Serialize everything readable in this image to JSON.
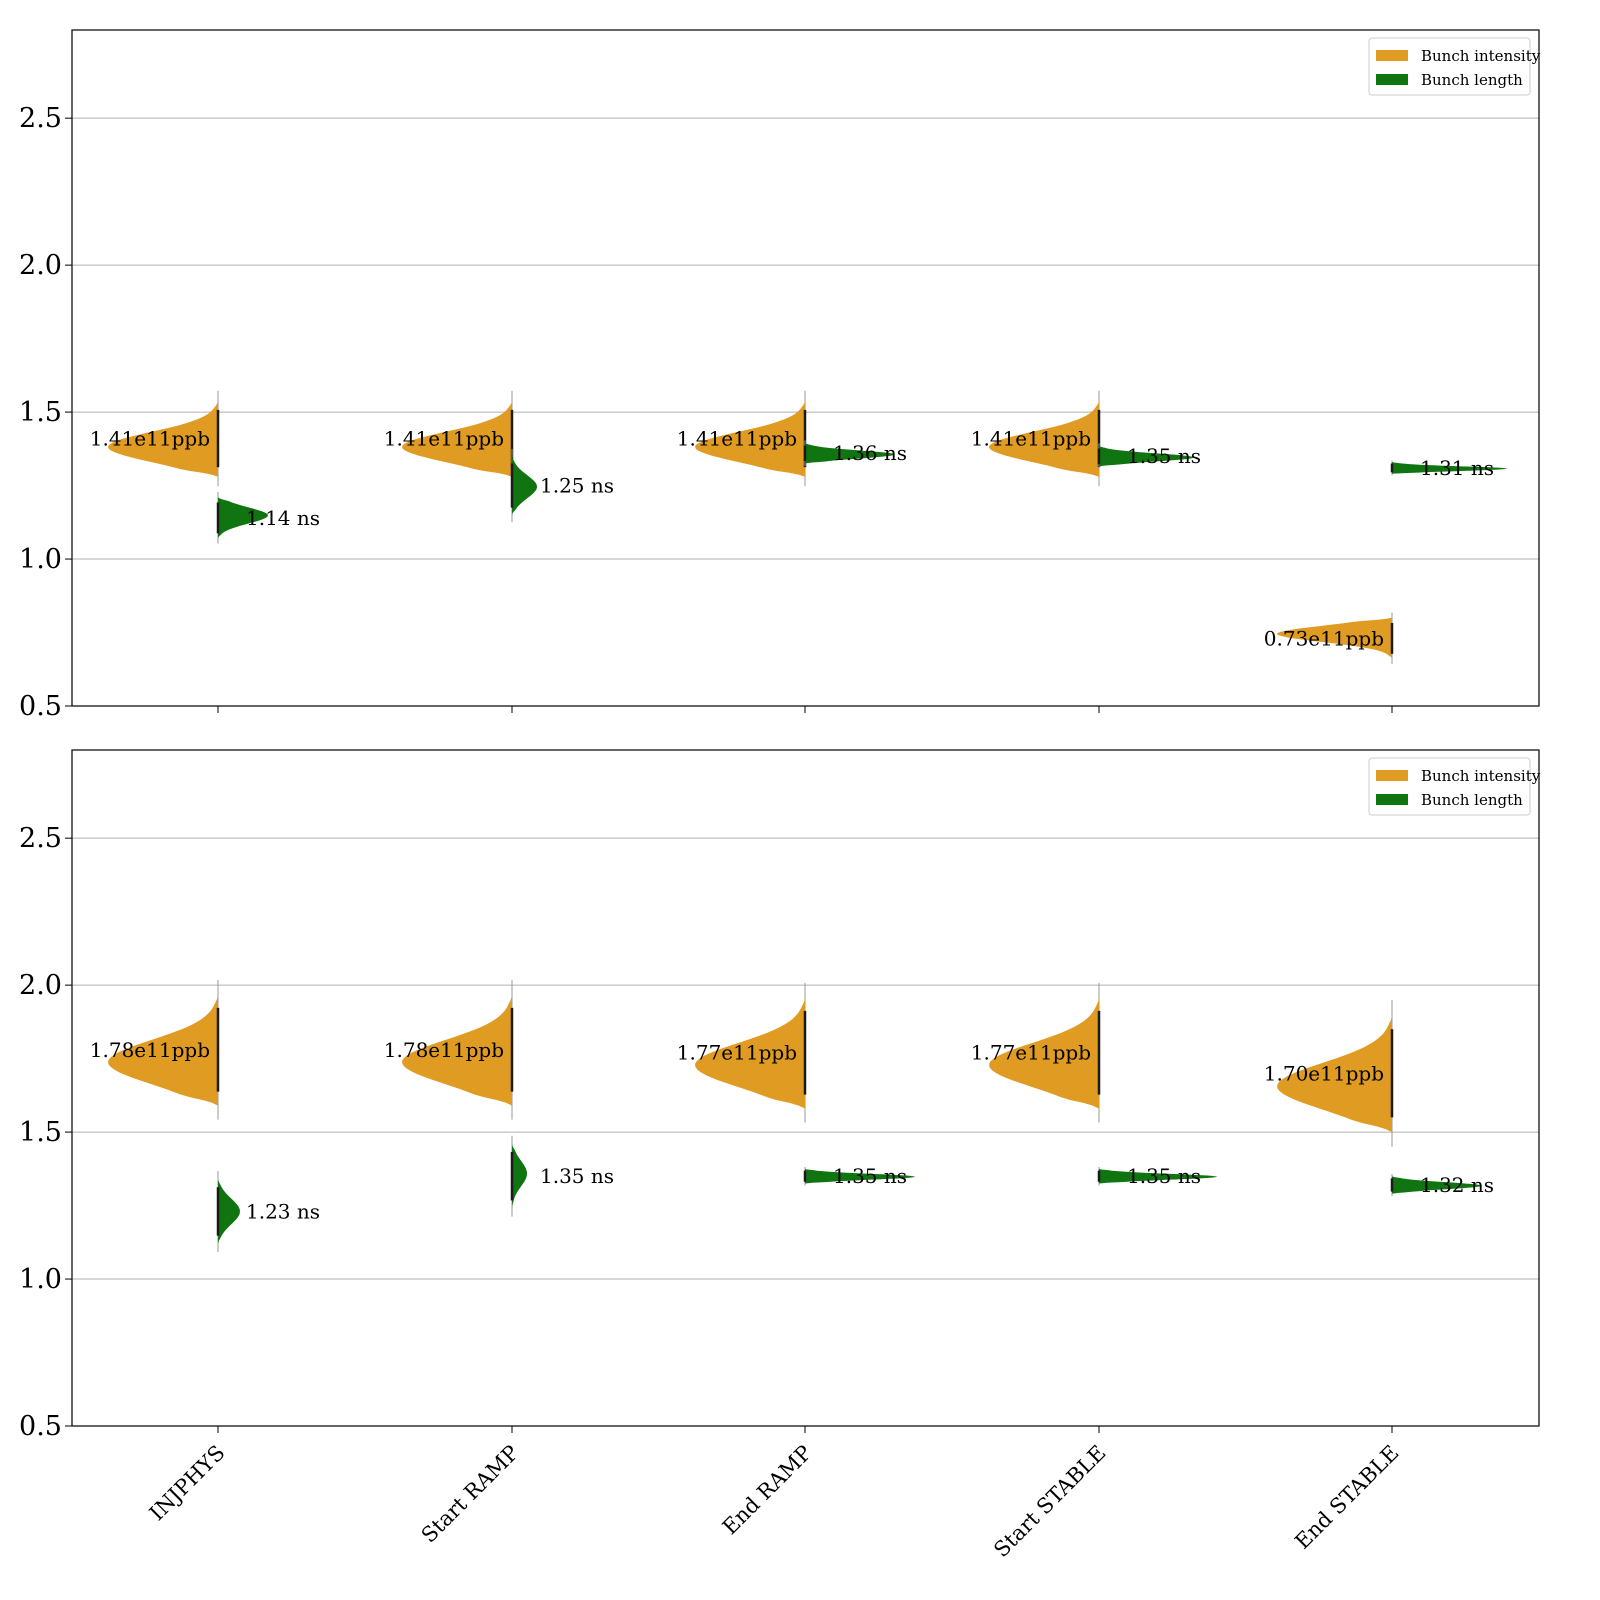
{
  "chart_data": [
    {
      "type": "violin",
      "title": "",
      "xlabel": "",
      "ylabel": "",
      "ylim": [
        0.5,
        2.8
      ],
      "yticks": [
        0.5,
        1.0,
        1.5,
        2.0,
        2.5
      ],
      "grid": "horizontal",
      "legend_position": "top-right",
      "categories": [
        "INJPHYS",
        "Start RAMP",
        "End RAMP",
        "Start STABLE",
        "End STABLE"
      ],
      "series": [
        {
          "name": "Bunch intensity",
          "color": "#e09b22",
          "side": "left",
          "medians": [
            1.41,
            1.41,
            1.41,
            1.41,
            0.73
          ],
          "labels": [
            "1.41e11ppb",
            "1.41e11ppb",
            "1.41e11ppb",
            "1.41e11ppb",
            "0.73e11ppb"
          ]
        },
        {
          "name": "Bunch length",
          "color": "#107510",
          "side": "right",
          "medians": [
            1.14,
            1.25,
            1.36,
            1.35,
            1.31
          ],
          "labels": [
            "1.14 ns",
            "1.25 ns",
            "1.36 ns",
            "1.35 ns",
            "1.31 ns"
          ]
        }
      ]
    },
    {
      "type": "violin",
      "title": "",
      "xlabel": "",
      "ylabel": "",
      "ylim": [
        0.5,
        2.8
      ],
      "yticks": [
        0.5,
        1.0,
        1.5,
        2.0,
        2.5
      ],
      "grid": "horizontal",
      "legend_position": "top-right",
      "categories": [
        "INJPHYS",
        "Start RAMP",
        "End RAMP",
        "Start STABLE",
        "End STABLE"
      ],
      "series": [
        {
          "name": "Bunch intensity",
          "color": "#e09b22",
          "side": "left",
          "medians": [
            1.78,
            1.78,
            1.77,
            1.77,
            1.7
          ],
          "labels": [
            "1.78e11ppb",
            "1.78e11ppb",
            "1.77e11ppb",
            "1.77e11ppb",
            "1.70e11ppb"
          ]
        },
        {
          "name": "Bunch length",
          "color": "#107510",
          "side": "right",
          "medians": [
            1.23,
            1.35,
            1.35,
            1.35,
            1.32
          ],
          "labels": [
            "1.23 ns",
            "1.35 ns",
            "1.35 ns",
            "1.35 ns",
            "1.32 ns"
          ]
        }
      ]
    }
  ]
}
